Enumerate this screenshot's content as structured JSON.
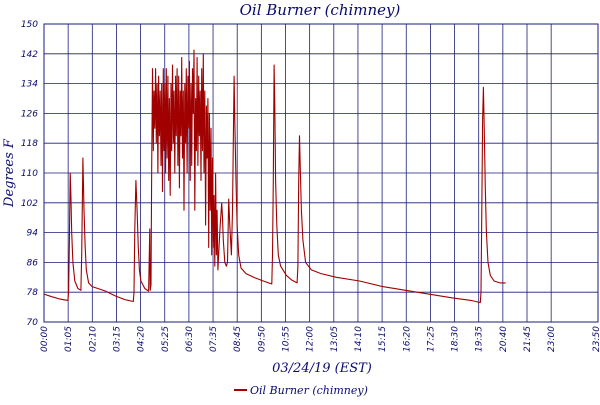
{
  "chart_data": {
    "type": "line",
    "title": "Oil Burner (chimney)",
    "xlabel": "03/24/19 (EST)",
    "ylabel": "Degrees F",
    "ylim": [
      70,
      150
    ],
    "xlim": [
      0,
      1440
    ],
    "grid": true,
    "legend_position": "bottom-center",
    "y_ticks": [
      "70",
      "78",
      "86",
      "94",
      "102",
      "110",
      "118",
      "126",
      "134",
      "142",
      "150"
    ],
    "x_ticks": [
      "00:00",
      "01:05",
      "02:10",
      "03:15",
      "04:20",
      "05:25",
      "06:30",
      "07:35",
      "08:45",
      "09:50",
      "10:55",
      "12:00",
      "13:05",
      "14:10",
      "15:15",
      "16:20",
      "17:25",
      "18:30",
      "19:35",
      "20:40",
      "21:45",
      "23:00",
      "23:50"
    ],
    "x_unit": "minutes since 00:00",
    "colors": {
      "line": "#a00000",
      "grid": "#1c1c78",
      "text": "#0a0a6e"
    },
    "series": [
      {
        "name": "Oil Burner (chimney)",
        "points": [
          [
            0,
            77.5
          ],
          [
            20,
            76.8
          ],
          [
            40,
            76.2
          ],
          [
            62,
            75.8
          ],
          [
            64,
            78
          ],
          [
            66,
            92
          ],
          [
            68,
            110
          ],
          [
            70,
            104
          ],
          [
            72,
            94
          ],
          [
            75,
            86
          ],
          [
            80,
            81
          ],
          [
            88,
            79
          ],
          [
            96,
            78.5
          ],
          [
            98,
            88
          ],
          [
            101,
            114
          ],
          [
            104,
            100
          ],
          [
            107,
            90
          ],
          [
            110,
            84
          ],
          [
            116,
            80.5
          ],
          [
            125,
            79.5
          ],
          [
            140,
            79
          ],
          [
            160,
            78.3
          ],
          [
            185,
            77
          ],
          [
            210,
            76
          ],
          [
            232,
            75.5
          ],
          [
            234,
            78
          ],
          [
            236,
            95
          ],
          [
            239,
            108
          ],
          [
            242,
            100
          ],
          [
            245,
            90
          ],
          [
            248,
            84
          ],
          [
            252,
            81
          ],
          [
            262,
            79
          ],
          [
            272,
            78.3
          ],
          [
            275,
            95
          ],
          [
            276,
            78.5
          ],
          [
            278,
            80
          ],
          [
            280,
            112
          ],
          [
            282,
            138
          ],
          [
            284,
            116
          ],
          [
            286,
            132
          ],
          [
            288,
            122
          ],
          [
            290,
            138
          ],
          [
            292,
            118
          ],
          [
            294,
            134
          ],
          [
            296,
            110
          ],
          [
            298,
            136
          ],
          [
            300,
            120
          ],
          [
            302,
            132
          ],
          [
            304,
            112
          ],
          [
            306,
            134
          ],
          [
            308,
            105
          ],
          [
            310,
            138
          ],
          [
            312,
            116
          ],
          [
            314,
            134
          ],
          [
            316,
            110
          ],
          [
            318,
            138
          ],
          [
            320,
            114
          ],
          [
            322,
            136
          ],
          [
            324,
            108
          ],
          [
            326,
            130
          ],
          [
            328,
            104
          ],
          [
            330,
            134
          ],
          [
            332,
            116
          ],
          [
            334,
            139
          ],
          [
            336,
            118
          ],
          [
            338,
            132
          ],
          [
            340,
            110
          ],
          [
            342,
            136
          ],
          [
            344,
            120
          ],
          [
            346,
            138
          ],
          [
            348,
            112
          ],
          [
            350,
            136
          ],
          [
            352,
            106
          ],
          [
            354,
            132
          ],
          [
            356,
            120
          ],
          [
            358,
            141
          ],
          [
            360,
            114
          ],
          [
            362,
            132
          ],
          [
            364,
            100
          ],
          [
            366,
            134
          ],
          [
            368,
            118
          ],
          [
            370,
            138
          ],
          [
            372,
            110
          ],
          [
            374,
            136
          ],
          [
            376,
            122
          ],
          [
            378,
            140
          ],
          [
            380,
            108
          ],
          [
            382,
            134
          ],
          [
            384,
            112
          ],
          [
            386,
            138
          ],
          [
            388,
            126
          ],
          [
            390,
            143
          ],
          [
            392,
            100
          ],
          [
            394,
            130
          ],
          [
            396,
            116
          ],
          [
            398,
            141
          ],
          [
            400,
            112
          ],
          [
            402,
            136
          ],
          [
            404,
            120
          ],
          [
            406,
            132
          ],
          [
            408,
            108
          ],
          [
            410,
            138
          ],
          [
            412,
            116
          ],
          [
            414,
            142
          ],
          [
            416,
            110
          ],
          [
            418,
            132
          ],
          [
            420,
            96
          ],
          [
            422,
            128
          ],
          [
            424,
            114
          ],
          [
            426,
            130
          ],
          [
            428,
            90
          ],
          [
            430,
            126
          ],
          [
            432,
            100
          ],
          [
            434,
            122
          ],
          [
            436,
            88
          ],
          [
            438,
            114
          ],
          [
            440,
            90
          ],
          [
            442,
            104
          ],
          [
            444,
            85
          ],
          [
            446,
            110
          ],
          [
            448,
            88
          ],
          [
            450,
            100
          ],
          [
            452,
            84
          ],
          [
            455,
            90
          ],
          [
            458,
            96
          ],
          [
            462,
            102
          ],
          [
            464,
            98
          ],
          [
            466,
            92
          ],
          [
            470,
            86
          ],
          [
            474,
            85
          ],
          [
            477,
            86
          ],
          [
            480,
            103
          ],
          [
            483,
            96
          ],
          [
            487,
            88
          ],
          [
            490,
            100
          ],
          [
            492,
            118
          ],
          [
            494,
            136
          ],
          [
            496,
            124
          ],
          [
            499,
            108
          ],
          [
            502,
            96
          ],
          [
            506,
            88
          ],
          [
            512,
            84.5
          ],
          [
            525,
            83
          ],
          [
            545,
            82
          ],
          [
            570,
            81
          ],
          [
            592,
            80.2
          ],
          [
            594,
            88
          ],
          [
            596,
            108
          ],
          [
            598,
            139
          ],
          [
            600,
            128
          ],
          [
            602,
            108
          ],
          [
            605,
            96
          ],
          [
            609,
            88
          ],
          [
            615,
            85
          ],
          [
            630,
            82.5
          ],
          [
            645,
            81.2
          ],
          [
            658,
            80.5
          ],
          [
            660,
            85
          ],
          [
            662,
            108
          ],
          [
            664,
            120
          ],
          [
            666,
            112
          ],
          [
            669,
            100
          ],
          [
            673,
            92
          ],
          [
            680,
            86
          ],
          [
            695,
            84
          ],
          [
            720,
            83
          ],
          [
            760,
            82
          ],
          [
            820,
            81
          ],
          [
            880,
            79.5
          ],
          [
            940,
            78.5
          ],
          [
            1000,
            77.5
          ],
          [
            1060,
            76.5
          ],
          [
            1110,
            75.8
          ],
          [
            1134,
            75.2
          ],
          [
            1136,
            78
          ],
          [
            1138,
            100
          ],
          [
            1140,
            124
          ],
          [
            1142,
            133
          ],
          [
            1144,
            124
          ],
          [
            1147,
            106
          ],
          [
            1150,
            94
          ],
          [
            1154,
            86
          ],
          [
            1160,
            82.5
          ],
          [
            1170,
            81
          ],
          [
            1185,
            80.5
          ],
          [
            1200,
            80.5
          ]
        ]
      }
    ]
  }
}
